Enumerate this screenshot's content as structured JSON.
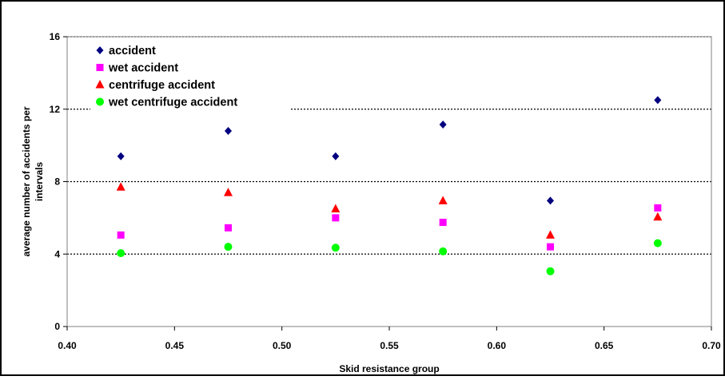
{
  "chart_data": {
    "type": "scatter",
    "xlabel": "Skid resistance group",
    "ylabel": "average number of accidents per intervals",
    "xlim": [
      0.4,
      0.7
    ],
    "ylim": [
      0,
      16
    ],
    "xticks": [
      "0.40",
      "0.45",
      "0.50",
      "0.55",
      "0.60",
      "0.65",
      "0.70"
    ],
    "yticks": [
      "0",
      "4",
      "8",
      "12",
      "16"
    ],
    "grid": "horizontal dotted",
    "legend_position": "top-left",
    "series": [
      {
        "name": "accident",
        "marker": "diamond",
        "color": "#000080",
        "points": [
          [
            0.425,
            9.4
          ],
          [
            0.475,
            10.8
          ],
          [
            0.525,
            9.4
          ],
          [
            0.575,
            11.15
          ],
          [
            0.625,
            6.95
          ],
          [
            0.675,
            12.5
          ]
        ]
      },
      {
        "name": "wet accident",
        "marker": "square",
        "color": "#ff00ff",
        "points": [
          [
            0.425,
            5.05
          ],
          [
            0.475,
            5.45
          ],
          [
            0.525,
            6.0
          ],
          [
            0.575,
            5.75
          ],
          [
            0.625,
            4.4
          ],
          [
            0.675,
            6.55
          ]
        ]
      },
      {
        "name": "centrifuge accident",
        "marker": "triangle",
        "color": "#ff0000",
        "points": [
          [
            0.425,
            7.7
          ],
          [
            0.475,
            7.4
          ],
          [
            0.525,
            6.5
          ],
          [
            0.575,
            6.95
          ],
          [
            0.625,
            5.05
          ],
          [
            0.675,
            6.05
          ]
        ]
      },
      {
        "name": "wet centrifuge accident",
        "marker": "circle",
        "color": "#00ff00",
        "points": [
          [
            0.425,
            4.05
          ],
          [
            0.475,
            4.4
          ],
          [
            0.525,
            4.35
          ],
          [
            0.575,
            4.15
          ],
          [
            0.625,
            3.05
          ],
          [
            0.675,
            4.6
          ]
        ]
      }
    ]
  }
}
